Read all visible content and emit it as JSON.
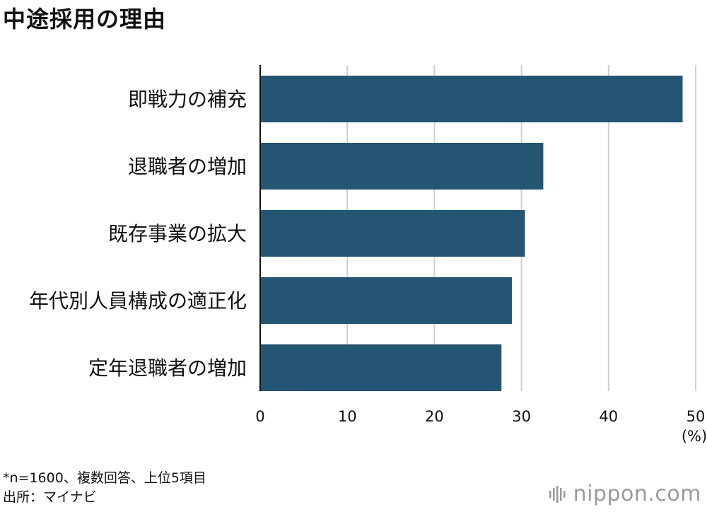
{
  "title": "中途採用の理由",
  "chart_data": {
    "type": "bar",
    "orientation": "horizontal",
    "categories": [
      "即戦力の補充",
      "退職者の増加",
      "既存事業の拡大",
      "年代別人員構成の適正化",
      "定年退職者の増加"
    ],
    "values": [
      48.5,
      32.5,
      30.4,
      28.9,
      27.7
    ],
    "xlim": [
      0,
      50
    ],
    "xticks": [
      0,
      10,
      20,
      30,
      40,
      50
    ],
    "unit_label": "(%)",
    "grid": true,
    "bar_color": "#245573"
  },
  "footnotes": {
    "note": "*n=1600、複数回答、上位5項目",
    "source": "出所：マイナビ"
  },
  "logo": {
    "text_main": "nippon",
    "text_dot": ".",
    "text_tld": "com"
  }
}
